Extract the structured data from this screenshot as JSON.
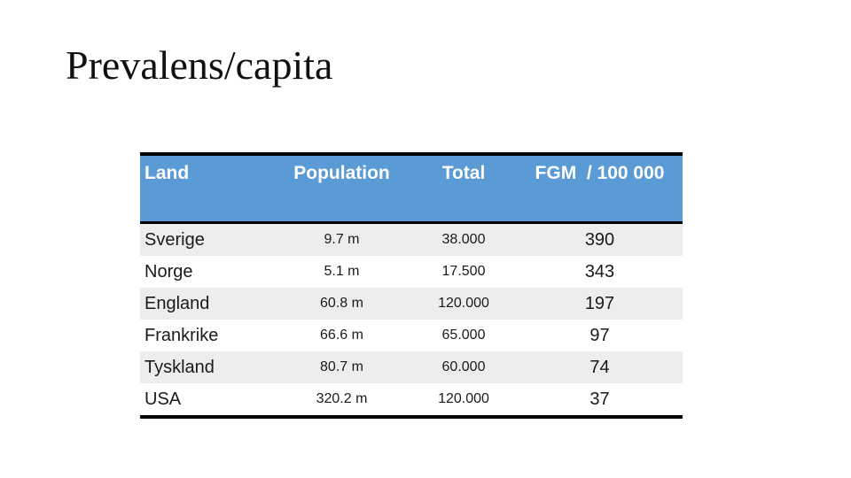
{
  "slide": {
    "title": "Prevalens/capita",
    "background": "#FFFFFF",
    "title_color": "#111111"
  },
  "table": {
    "columns": [
      {
        "key": "land",
        "label": "Land",
        "align": "left"
      },
      {
        "key": "population",
        "label": "Population",
        "align": "center"
      },
      {
        "key": "total",
        "label": "Total",
        "align": "center"
      },
      {
        "key": "fgm",
        "label": "FGM  / 100 000",
        "align": "center"
      }
    ],
    "rows": [
      {
        "land": "Sverige",
        "population": "9.7 m",
        "total": "38.000",
        "fgm": "390"
      },
      {
        "land": "Norge",
        "population": "5.1 m",
        "total": "17.500",
        "fgm": "343"
      },
      {
        "land": "England",
        "population": "60.8 m",
        "total": "120.000",
        "fgm": "197"
      },
      {
        "land": "Frankrike",
        "population": "66.6 m",
        "total": "65.000",
        "fgm": "97"
      },
      {
        "land": "Tyskland",
        "population": "80.7 m",
        "total": "60.000",
        "fgm": "74"
      },
      {
        "land": "USA",
        "population": "320.2 m",
        "total": "120.000",
        "fgm": "37"
      }
    ],
    "colors": {
      "header_bg": "#5B9BD5",
      "header_text": "#FFFFFF",
      "band_bg": "#EDEDED",
      "row_bg": "#FFFFFF",
      "border": "#000000",
      "text": "#1A1A1A"
    }
  }
}
